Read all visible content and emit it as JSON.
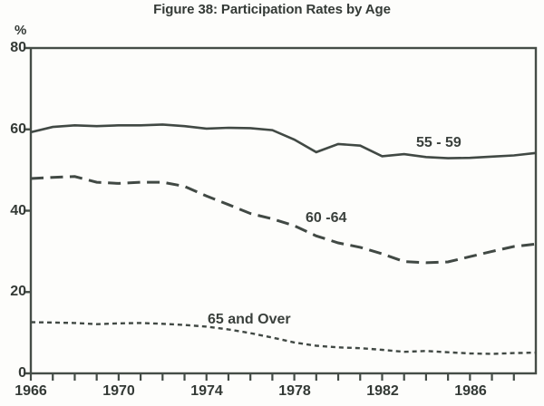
{
  "figure": {
    "title": "Figure 38: Participation Rates by Age",
    "unit": "%"
  },
  "chart_data": {
    "type": "line",
    "title": "Figure 38: Participation Rates by Age",
    "xlabel": "",
    "ylabel": "%",
    "ylim": [
      0,
      80
    ],
    "yticks": [
      0,
      20,
      40,
      60,
      80
    ],
    "xlim": [
      1966,
      1989
    ],
    "xtick_labels": [
      "1966",
      "1970",
      "1974",
      "1978",
      "1982",
      "1986"
    ],
    "xtick_years": [
      1966,
      1970,
      1974,
      1978,
      1982,
      1986
    ],
    "minor_xtick_interval_years": 1,
    "grid": false,
    "legend_position": "inline-labels-on-lines",
    "x": [
      1966,
      1967,
      1968,
      1969,
      1970,
      1971,
      1972,
      1973,
      1974,
      1975,
      1976,
      1977,
      1978,
      1979,
      1980,
      1981,
      1982,
      1983,
      1984,
      1985,
      1986,
      1987,
      1988,
      1989
    ],
    "series": [
      {
        "name": "55 - 59",
        "style": "solid",
        "values": [
          59.3,
          60.6,
          61.0,
          60.8,
          61.0,
          61.0,
          61.2,
          60.8,
          60.2,
          60.4,
          60.3,
          59.8,
          57.5,
          54.4,
          56.4,
          56.0,
          53.4,
          53.9,
          53.2,
          52.9,
          53.0,
          53.3,
          53.6,
          54.2
        ]
      },
      {
        "name": "60 -64",
        "style": "long-dash",
        "values": [
          47.9,
          48.2,
          48.4,
          47.0,
          46.7,
          47.0,
          47.0,
          46.0,
          43.6,
          41.5,
          39.3,
          38.0,
          36.3,
          33.8,
          32.1,
          31.0,
          29.4,
          27.5,
          27.2,
          27.4,
          28.7,
          30.0,
          31.2,
          31.8
        ]
      },
      {
        "name": "65 and Over",
        "style": "short-dash",
        "values": [
          12.6,
          12.5,
          12.4,
          12.1,
          12.3,
          12.4,
          12.2,
          11.9,
          11.5,
          10.8,
          9.9,
          8.8,
          7.6,
          6.8,
          6.4,
          6.2,
          5.8,
          5.3,
          5.5,
          5.2,
          4.9,
          4.8,
          5.0,
          5.1
        ]
      }
    ],
    "colors": {
      "line": "#414944",
      "axis": "#454d47",
      "text": "#343a36",
      "background": "#fdfdfb"
    }
  }
}
